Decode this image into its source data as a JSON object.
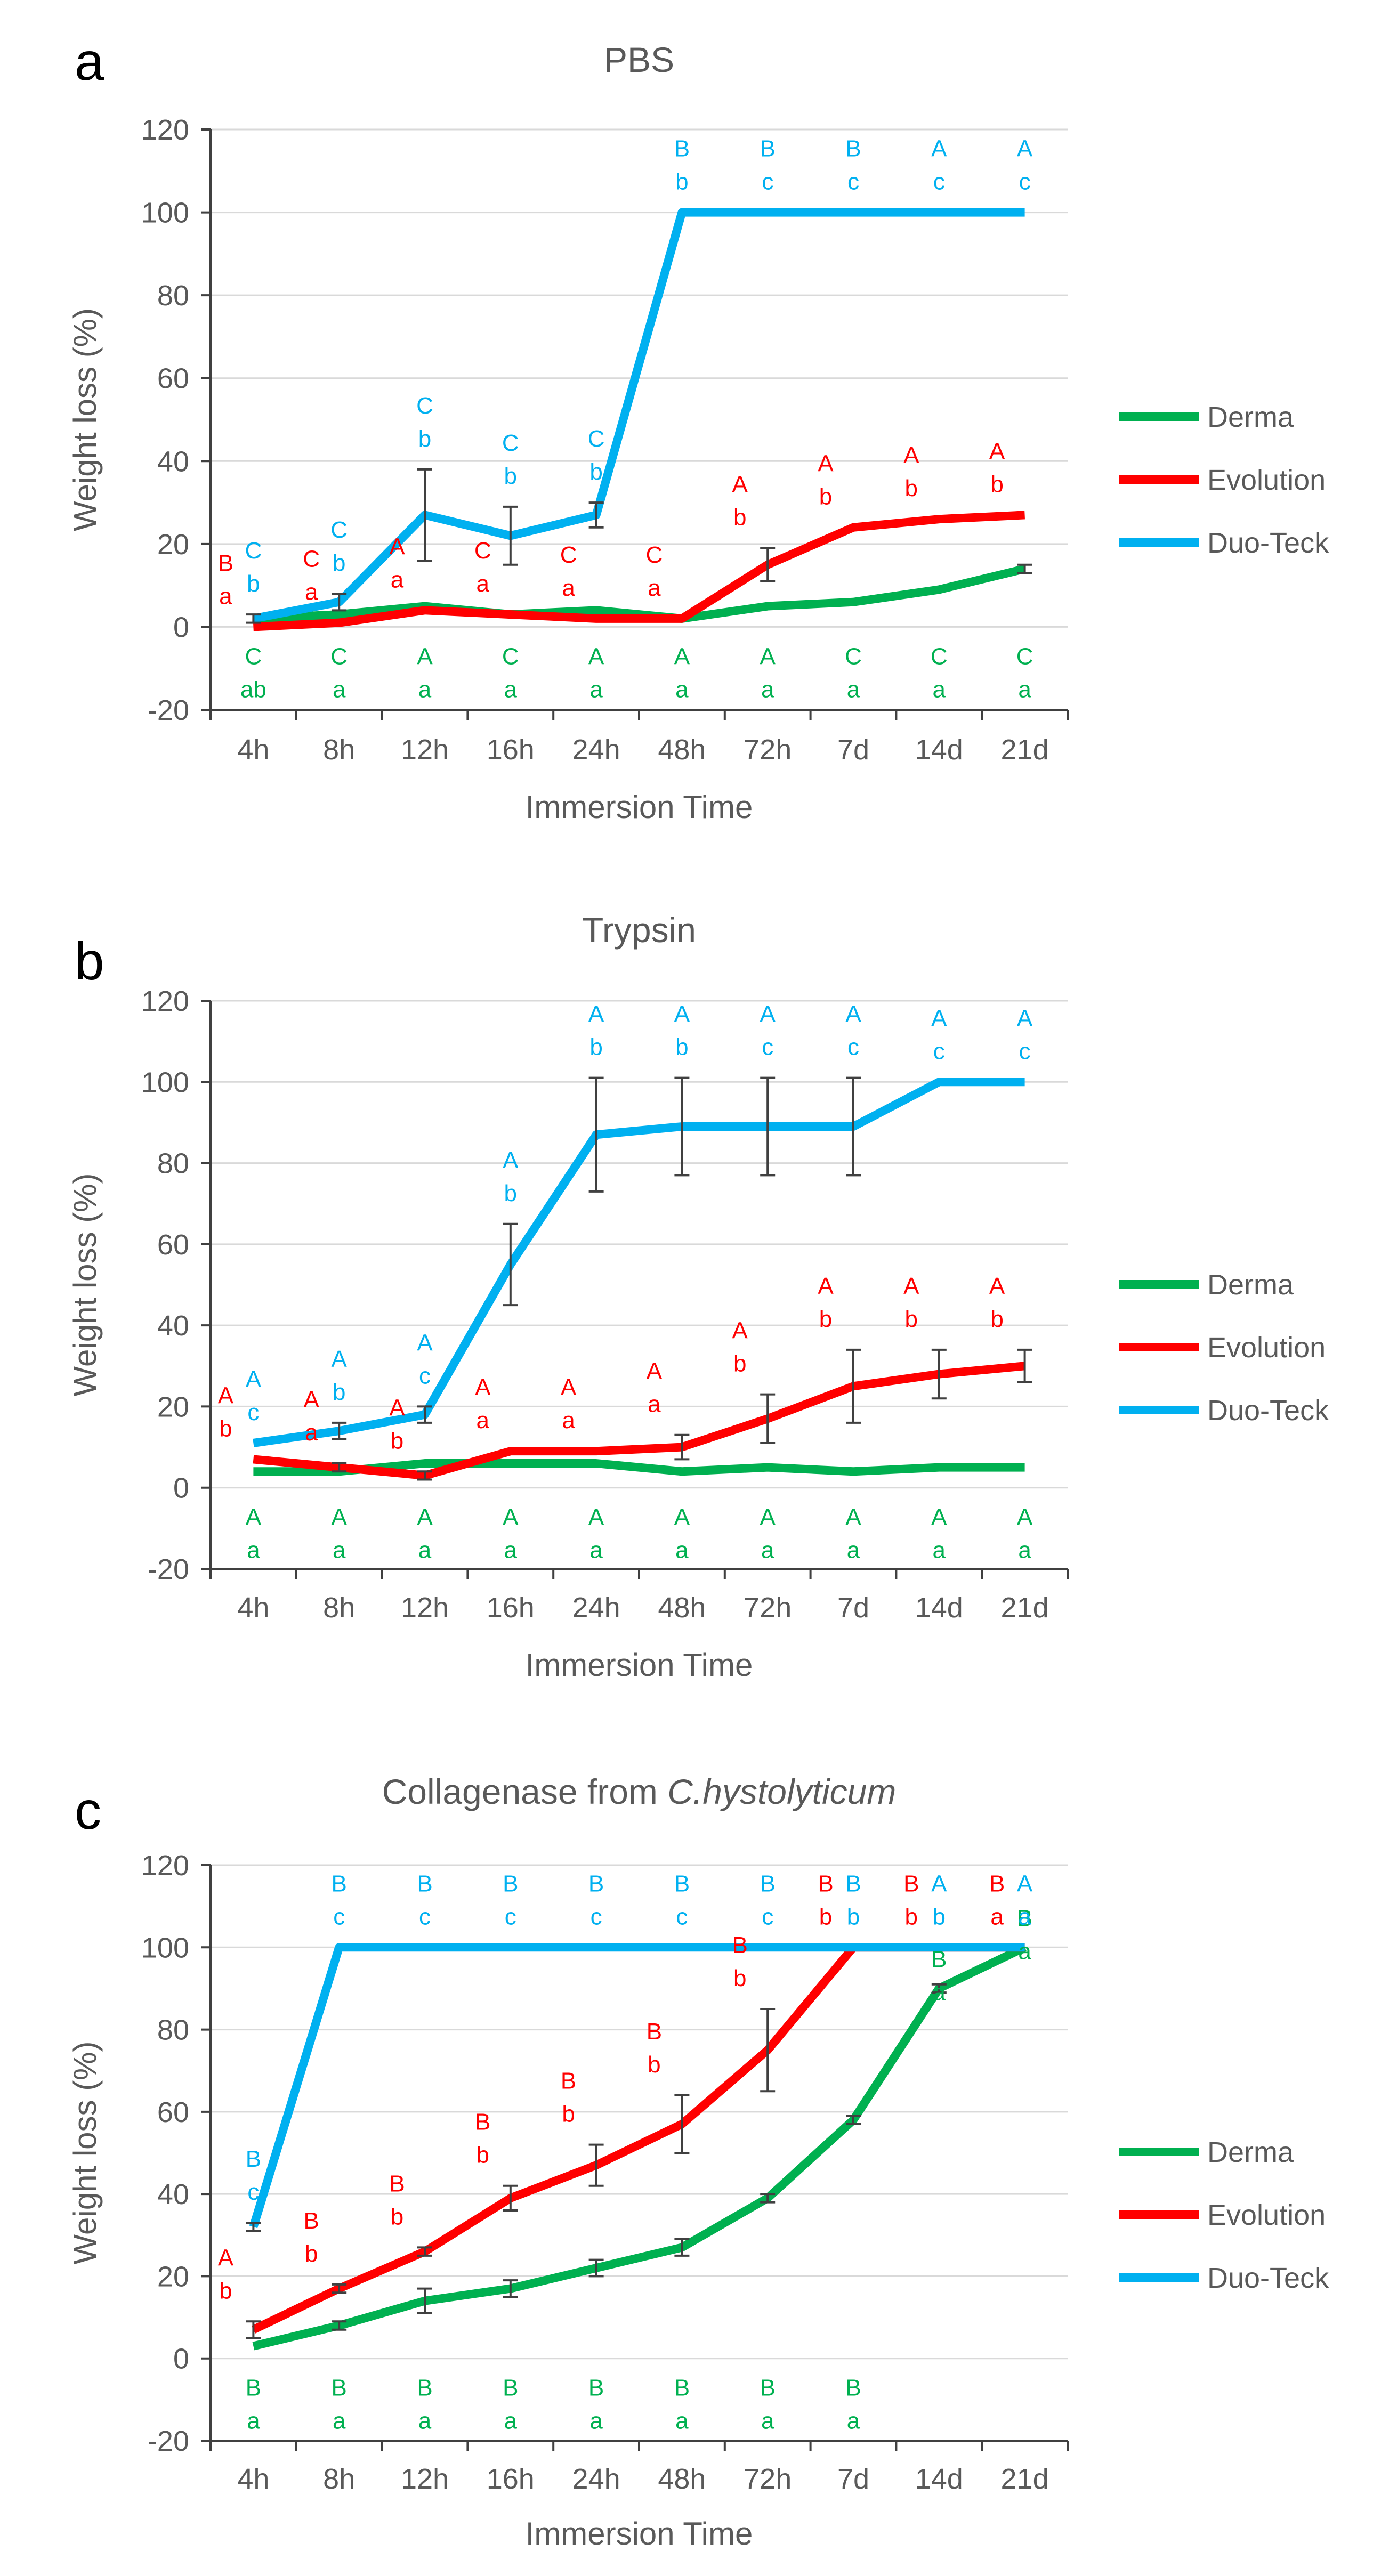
{
  "colors": {
    "Derma": "#00b050",
    "Evolution": "#ff0000",
    "Duo-Teck": "#00b0f0",
    "grid": "#d9d9d9",
    "axis": "#404040",
    "text": "#595959",
    "errorbar": "#404040"
  },
  "chart_data": [
    {
      "panel": "a",
      "type": "line",
      "title": "PBS",
      "title_italic": "",
      "xlabel": "Immersion Time",
      "ylabel": "Weight loss (%)",
      "ylim": [
        -20,
        120
      ],
      "yticks": [
        -20,
        0,
        20,
        40,
        60,
        80,
        100,
        120
      ],
      "grid": true,
      "legend": "right",
      "categories": [
        "4h",
        "8h",
        "12h",
        "16h",
        "24h",
        "48h",
        "72h",
        "7d",
        "14d",
        "21d"
      ],
      "series": [
        {
          "name": "Derma",
          "values": [
            2,
            3,
            5,
            3,
            4,
            2,
            5,
            6,
            9,
            14
          ],
          "errors": [
            0,
            0,
            0,
            0,
            0,
            0,
            0,
            0,
            0,
            1
          ],
          "labels_top": [
            "C",
            "C",
            "A",
            "C",
            "A",
            "A",
            "A",
            "C",
            "C",
            "C"
          ],
          "labels_bottom": [
            "ab",
            "a",
            "a",
            "a",
            "a",
            "a",
            "a",
            "a",
            "a",
            "a"
          ]
        },
        {
          "name": "Evolution",
          "values": [
            0,
            1,
            4,
            3,
            2,
            2,
            15,
            24,
            26,
            27
          ],
          "errors": [
            0,
            0,
            0,
            0,
            0,
            0,
            4,
            0,
            0,
            0
          ],
          "labels_top": [
            "B",
            "C",
            "A",
            "C",
            "C",
            "C",
            "A",
            "A",
            "A",
            "A"
          ],
          "labels_bottom": [
            "a",
            "a",
            "a",
            "a",
            "a",
            "a",
            "b",
            "b",
            "b",
            "b"
          ]
        },
        {
          "name": "Duo-Teck",
          "values": [
            2,
            6,
            27,
            22,
            27,
            100,
            100,
            100,
            100,
            100
          ],
          "errors": [
            1,
            2,
            11,
            7,
            3,
            0,
            0,
            0,
            0,
            0
          ],
          "labels_top": [
            "C",
            "C",
            "C",
            "C",
            "C",
            "B",
            "B",
            "B",
            "A",
            "A"
          ],
          "labels_bottom": [
            "b",
            "b",
            "b",
            "b",
            "b",
            "b",
            "c",
            "c",
            "c",
            "c"
          ]
        }
      ]
    },
    {
      "panel": "b",
      "type": "line",
      "title": "Trypsin",
      "title_italic": "",
      "xlabel": "Immersion Time",
      "ylabel": "Weight loss (%)",
      "ylim": [
        -20,
        120
      ],
      "yticks": [
        -20,
        0,
        20,
        40,
        60,
        80,
        100,
        120
      ],
      "grid": true,
      "legend": "right",
      "categories": [
        "4h",
        "8h",
        "12h",
        "16h",
        "24h",
        "48h",
        "72h",
        "7d",
        "14d",
        "21d"
      ],
      "series": [
        {
          "name": "Derma",
          "values": [
            4,
            4,
            6,
            6,
            6,
            4,
            5,
            4,
            5,
            5
          ],
          "errors": [
            0,
            0,
            0,
            0,
            0,
            0,
            0,
            0,
            0,
            0
          ],
          "labels_top": [
            "A",
            "A",
            "A",
            "A",
            "A",
            "A",
            "A",
            "A",
            "A",
            "A"
          ],
          "labels_bottom": [
            "a",
            "a",
            "a",
            "a",
            "a",
            "a",
            "a",
            "a",
            "a",
            "a"
          ]
        },
        {
          "name": "Evolution",
          "values": [
            7,
            5,
            3,
            9,
            9,
            10,
            17,
            25,
            28,
            30
          ],
          "errors": [
            0,
            1,
            1,
            0,
            0,
            3,
            6,
            9,
            6,
            4
          ],
          "labels_top": [
            "A",
            "A",
            "A",
            "A",
            "A",
            "A",
            "A",
            "A",
            "A",
            "A"
          ],
          "labels_bottom": [
            "b",
            "a",
            "b",
            "a",
            "a",
            "a",
            "b",
            "b",
            "b",
            "b"
          ]
        },
        {
          "name": "Duo-Teck",
          "values": [
            11,
            14,
            18,
            55,
            87,
            89,
            89,
            89,
            100,
            100
          ],
          "errors": [
            0,
            2,
            2,
            10,
            14,
            12,
            12,
            12,
            0,
            0
          ],
          "labels_top": [
            "A",
            "A",
            "A",
            "A",
            "A",
            "A",
            "A",
            "A",
            "A",
            "A"
          ],
          "labels_bottom": [
            "c",
            "b",
            "c",
            "b",
            "b",
            "b",
            "c",
            "c",
            "c",
            "c"
          ]
        }
      ]
    },
    {
      "panel": "c",
      "type": "line",
      "title": "Collagenase from ",
      "title_italic": "C.hystolyticum",
      "xlabel": "Immersion Time",
      "ylabel": "Weight loss (%)",
      "ylim": [
        -20,
        120
      ],
      "yticks": [
        -20,
        0,
        20,
        40,
        60,
        80,
        100,
        120
      ],
      "grid": true,
      "legend": "right",
      "categories": [
        "4h",
        "8h",
        "12h",
        "16h",
        "24h",
        "48h",
        "72h",
        "7d",
        "14d",
        "21d"
      ],
      "series": [
        {
          "name": "Derma",
          "values": [
            3,
            8,
            14,
            17,
            22,
            27,
            39,
            58,
            90,
            100
          ],
          "errors": [
            0,
            1,
            3,
            2,
            2,
            2,
            1,
            1,
            1,
            0
          ],
          "labels_top": [
            "B",
            "B",
            "B",
            "B",
            "B",
            "B",
            "B",
            "B",
            "B",
            "B"
          ],
          "labels_bottom": [
            "a",
            "a",
            "a",
            "a",
            "a",
            "a",
            "a",
            "a",
            "a",
            "a"
          ]
        },
        {
          "name": "Evolution",
          "values": [
            7,
            17,
            26,
            39,
            47,
            57,
            75,
            100,
            100,
            100
          ],
          "errors": [
            2,
            1,
            1,
            3,
            5,
            7,
            10,
            0,
            0,
            0
          ],
          "labels_top": [
            "A",
            "B",
            "B",
            "B",
            "B",
            "B",
            "B",
            "B",
            "B",
            "B"
          ],
          "labels_bottom": [
            "b",
            "b",
            "b",
            "b",
            "b",
            "b",
            "b",
            "b",
            "b",
            "a"
          ]
        },
        {
          "name": "Duo-Teck",
          "values": [
            32,
            100,
            100,
            100,
            100,
            100,
            100,
            100,
            100,
            100
          ],
          "errors": [
            1,
            0,
            0,
            0,
            0,
            0,
            0,
            0,
            0,
            0
          ],
          "labels_top": [
            "B",
            "B",
            "B",
            "B",
            "B",
            "B",
            "B",
            "B",
            "A",
            "A"
          ],
          "labels_bottom": [
            "c",
            "c",
            "c",
            "c",
            "c",
            "c",
            "c",
            "b",
            "b",
            "a"
          ]
        }
      ]
    }
  ]
}
